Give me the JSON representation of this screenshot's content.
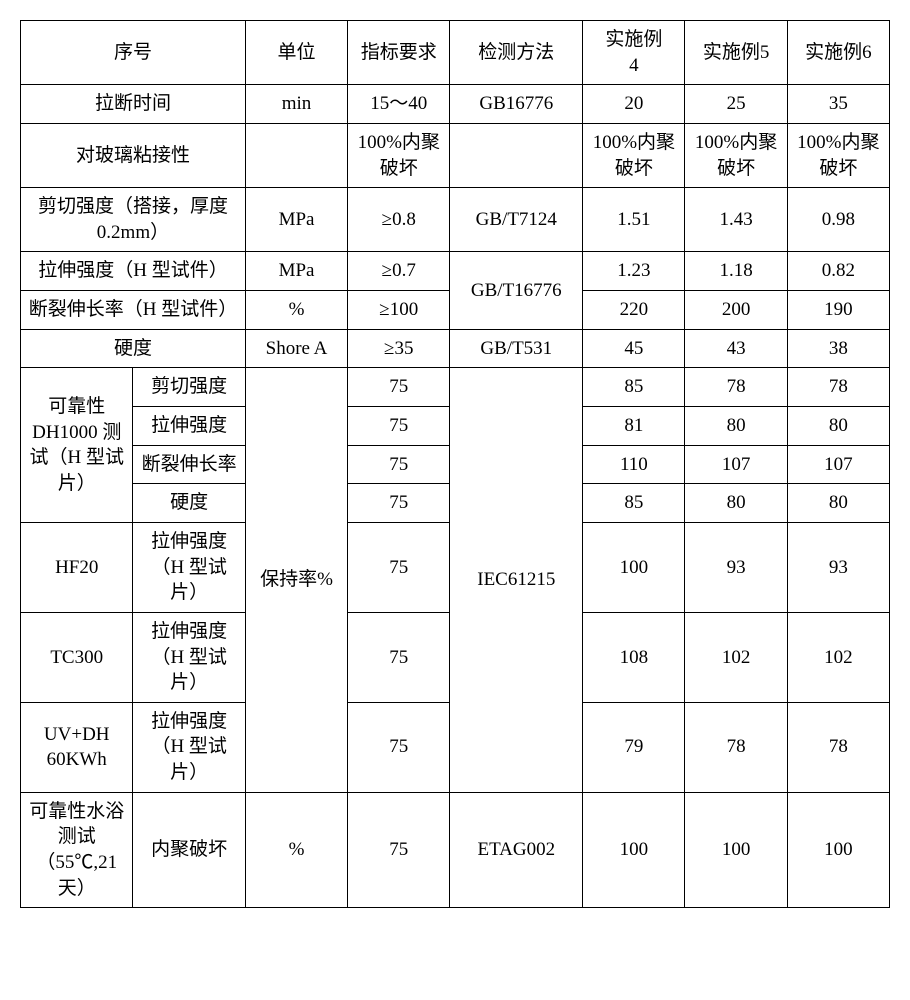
{
  "header": {
    "seq": "序号",
    "unit": "单位",
    "req": "指标要求",
    "method": "检测方法",
    "ex4": "实施例\n4",
    "ex5": "实施例5",
    "ex6": "实施例6"
  },
  "rows": {
    "r1": {
      "name": "拉断时间",
      "unit": "min",
      "req": "15～40",
      "method": "GB16776",
      "ex4": "20",
      "ex5": "25",
      "ex6": "35"
    },
    "r2": {
      "name": "对玻璃粘接性",
      "unit": "",
      "req": "100%内聚破坏",
      "method": "",
      "ex4": "100%内聚破坏",
      "ex5": "100%内聚破坏",
      "ex6": "100%内聚\n破坏"
    },
    "r3": {
      "name": "剪切强度（搭接，厚度0.2mm）",
      "unit": "MPa",
      "req": "≥0.8",
      "method": "GB/T7124",
      "ex4": "1.51",
      "ex5": "1.43",
      "ex6": "0.98"
    },
    "r4": {
      "name": "拉伸强度（H 型试件）",
      "unit": "MPa",
      "req": "≥0.7",
      "method": "GB/T16776",
      "ex4": "1.23",
      "ex5": "1.18",
      "ex6": "0.82"
    },
    "r5": {
      "name": "断裂伸长率（H 型试件）",
      "unit": "%",
      "req": "≥100",
      "ex4": "220",
      "ex5": "200",
      "ex6": "190"
    },
    "r6": {
      "name": "硬度",
      "unit": "Shore A",
      "req": "≥35",
      "method": "GB/T531",
      "ex4": "45",
      "ex5": "43",
      "ex6": "38"
    },
    "group1": {
      "label": "可靠性DH1000 测试（H 型试片）",
      "unit": "保持率%",
      "method": "IEC61215",
      "sr1": {
        "name": "剪切强度",
        "req": "75",
        "ex4": "85",
        "ex5": "78",
        "ex6": "78"
      },
      "sr2": {
        "name": "拉伸强度",
        "req": "75",
        "ex4": "81",
        "ex5": "80",
        "ex6": "80"
      },
      "sr3": {
        "name": "断裂伸长率",
        "req": "75",
        "ex4": "110",
        "ex5": "107",
        "ex6": "107"
      },
      "sr4": {
        "name": "硬度",
        "req": "75",
        "ex4": "85",
        "ex5": "80",
        "ex6": "80"
      }
    },
    "hf20": {
      "label": "HF20",
      "sub": "拉伸强度（H 型试片）",
      "req": "75",
      "ex4": "100",
      "ex5": "93",
      "ex6": "93"
    },
    "tc300": {
      "label": "TC300",
      "sub": "拉伸强度（H 型试片）",
      "req": "75",
      "ex4": "108",
      "ex5": "102",
      "ex6": "102"
    },
    "uvdh": {
      "label": "UV+DH\n60KWh",
      "sub": "拉伸强度（H 型试片）",
      "req": "75",
      "ex4": "79",
      "ex5": "78",
      "ex6": "78"
    },
    "water": {
      "label": "可靠性水浴测试（55℃,21天）",
      "sub": "内聚破坏",
      "unit": "%",
      "req": "75",
      "method": "ETAG002",
      "ex4": "100",
      "ex5": "100",
      "ex6": "100"
    }
  }
}
